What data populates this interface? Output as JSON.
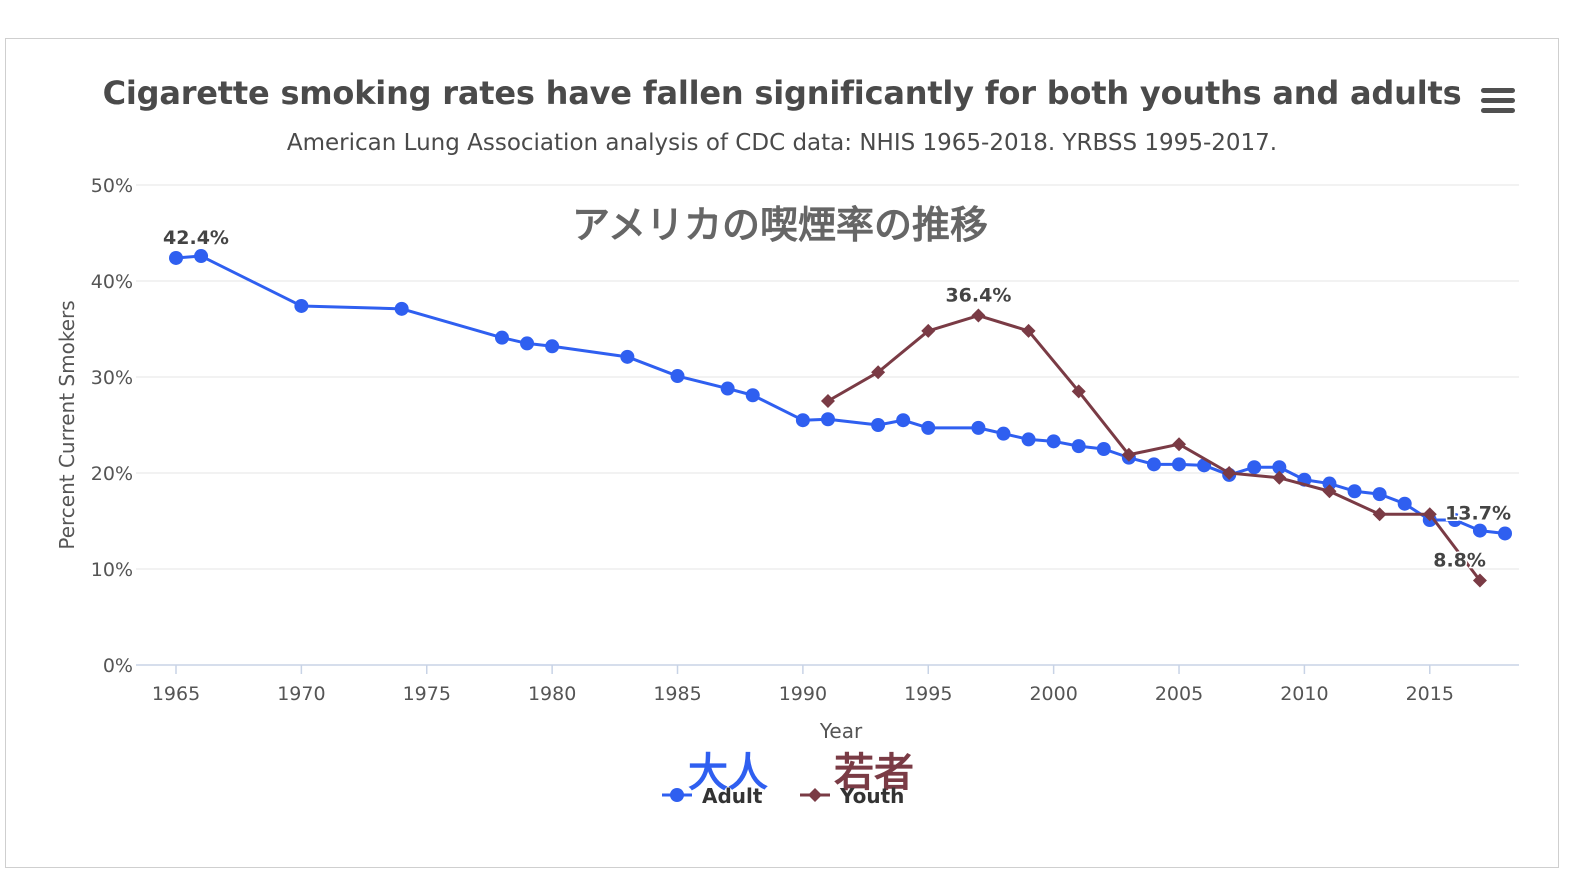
{
  "title": "Cigarette smoking rates have fallen significantly for both youths and adults",
  "subtitle": "American Lung Association analysis of CDC data: NHIS 1965-2018. YRBSS 1995-2017.",
  "overlay_text": "アメリカの喫煙率の推移",
  "menu_icon": "hamburger-menu-icon",
  "chart_data": {
    "type": "line",
    "xlabel": "Year",
    "ylabel": "Percent Current Smokers",
    "xlim": [
      1965,
      2018
    ],
    "ylim": [
      0,
      50
    ],
    "x_ticks": [
      1965,
      1970,
      1975,
      1980,
      1985,
      1990,
      1995,
      2000,
      2005,
      2010,
      2015
    ],
    "y_ticks": [
      "0%",
      "10%",
      "20%",
      "30%",
      "40%",
      "50%"
    ],
    "grid": true,
    "legend_position": "bottom",
    "series": [
      {
        "name": "Adult",
        "legend_jp": "大人",
        "color": "#2f5ff0",
        "marker": "circle",
        "x": [
          1965,
          1966,
          1970,
          1974,
          1978,
          1979,
          1980,
          1983,
          1985,
          1987,
          1988,
          1990,
          1991,
          1993,
          1994,
          1995,
          1997,
          1998,
          1999,
          2000,
          2001,
          2002,
          2003,
          2004,
          2005,
          2006,
          2007,
          2008,
          2009,
          2010,
          2011,
          2012,
          2013,
          2014,
          2015,
          2016,
          2017,
          2018
        ],
        "y": [
          42.4,
          42.6,
          37.4,
          37.1,
          34.1,
          33.5,
          33.2,
          32.1,
          30.1,
          28.8,
          28.1,
          25.5,
          25.6,
          25.0,
          25.5,
          24.7,
          24.7,
          24.1,
          23.5,
          23.3,
          22.8,
          22.5,
          21.6,
          20.9,
          20.9,
          20.8,
          19.8,
          20.6,
          20.6,
          19.3,
          18.9,
          18.1,
          17.8,
          16.8,
          15.1,
          15.1,
          14.0,
          13.7
        ],
        "data_labels": [
          {
            "x": 1965,
            "text": "42.4%"
          },
          {
            "x": 2018,
            "text": "13.7%"
          }
        ]
      },
      {
        "name": "Youth",
        "legend_jp": "若者",
        "color": "#7a3b45",
        "marker": "diamond",
        "x": [
          1991,
          1993,
          1995,
          1997,
          1999,
          2001,
          2003,
          2005,
          2007,
          2009,
          2011,
          2013,
          2015,
          2017
        ],
        "y": [
          27.5,
          30.5,
          34.8,
          36.4,
          34.8,
          28.5,
          21.9,
          23.0,
          20.0,
          19.5,
          18.1,
          15.7,
          15.7,
          8.8
        ],
        "data_labels": [
          {
            "x": 1997,
            "text": "36.4%"
          },
          {
            "x": 2017,
            "text": "8.8%"
          }
        ]
      }
    ]
  }
}
